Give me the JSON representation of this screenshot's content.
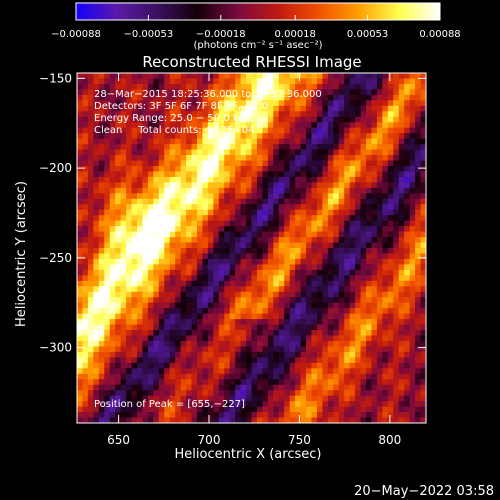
{
  "chart_data": {
    "type": "heatmap",
    "title": "Reconstructed RHESSI Image",
    "xlabel": "Heliocentric X (arcsec)",
    "ylabel": "Heliocentric Y (arcsec)",
    "xlim": [
      627,
      820
    ],
    "ylim": [
      -342,
      -147
    ],
    "xticks": [
      650,
      700,
      750,
      800
    ],
    "yticks": [
      -150,
      -200,
      -250,
      -300
    ],
    "xtick_labels": [
      "650",
      "700",
      "750",
      "800"
    ],
    "ytick_labels": [
      "−150",
      "−200",
      "−250",
      "−300"
    ],
    "colorbar": {
      "range": [
        -0.00088,
        0.00088
      ],
      "tick_values": [
        -0.00088,
        -0.00053,
        -0.00018,
        0.00018,
        0.00053,
        0.00088
      ],
      "tick_labels": [
        "−0.00088",
        "−0.00053",
        "−0.00018",
        "0.00018",
        "0.00053",
        "0.00088"
      ],
      "units_label": "(photons cm⁻² s⁻¹ asec⁻²)",
      "colors": [
        "#1400ff",
        "#5a1aa8",
        "#3a1060",
        "#140008",
        "#7a0a40",
        "#c01a10",
        "#f05000",
        "#ffa000",
        "#ffff50",
        "#ffffff"
      ]
    },
    "annotations": {
      "time_range": "28−Mar−2015 18:25:36.000 to 18:31:36.000",
      "detectors": "Detectors: 3F 5F 6F 7F 8F 9F, Att 0",
      "energy_range": "Energy Range: 25.0 − 50.0 keV",
      "method_counts": "Clean     Total counts: 4.12E+04",
      "peak_position": "Position of Peak = [655,−227]"
    },
    "peak": {
      "x": 655,
      "y": -227
    }
  },
  "footer": {
    "timestamp": "20−May−2022 03:58"
  }
}
